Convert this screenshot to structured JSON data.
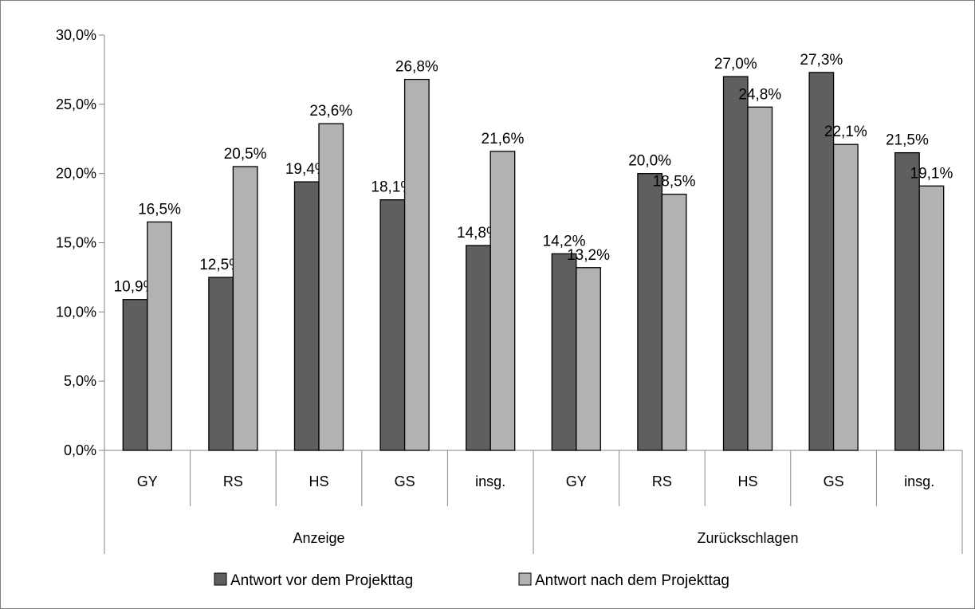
{
  "chart_data": {
    "type": "bar",
    "title": "",
    "xlabel": "",
    "ylabel": "",
    "ylim": [
      0,
      30
    ],
    "yticks": [
      "0,0%",
      "5,0%",
      "10,0%",
      "15,0%",
      "20,0%",
      "25,0%",
      "30,0%"
    ],
    "grid": false,
    "legend_position": "bottom",
    "groups": [
      {
        "label": "Anzeige",
        "categories": [
          "GY",
          "RS",
          "HS",
          "GS",
          "insg."
        ]
      },
      {
        "label": "Zurückschlagen",
        "categories": [
          "GY",
          "RS",
          "HS",
          "GS",
          "insg."
        ]
      }
    ],
    "series": [
      {
        "name": "Antwort vor dem Projekttag",
        "color": "#5f5f5f",
        "values": [
          10.9,
          12.5,
          19.4,
          18.1,
          14.8,
          14.2,
          20.0,
          27.0,
          27.3,
          21.5
        ],
        "labels": [
          "10,9%",
          "12,5%",
          "19,4%",
          "18,1%",
          "14,8%",
          "14,2%",
          "20,0%",
          "27,0%",
          "27,3%",
          "21,5%"
        ]
      },
      {
        "name": "Antwort nach dem Projekttag",
        "color": "#b2b2b2",
        "values": [
          16.5,
          20.5,
          23.6,
          26.8,
          21.6,
          13.2,
          18.5,
          24.8,
          22.1,
          19.1
        ],
        "labels": [
          "16,5%",
          "20,5%",
          "23,6%",
          "26,8%",
          "21,6%",
          "13,2%",
          "18,5%",
          "24,8%",
          "22,1%",
          "19,1%"
        ]
      }
    ]
  }
}
